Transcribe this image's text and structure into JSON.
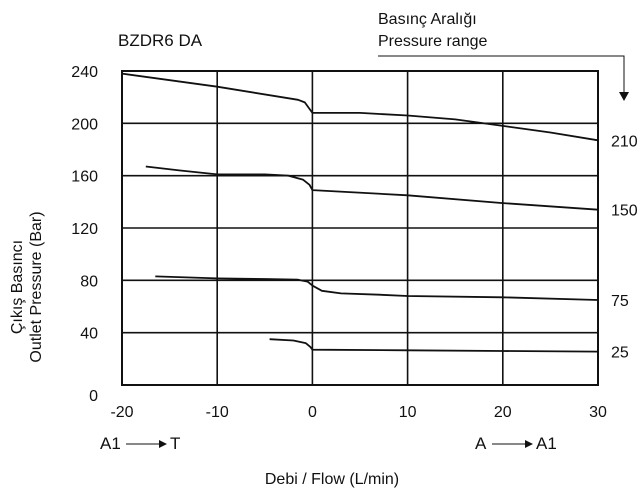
{
  "chart_data": {
    "type": "line",
    "title": "BZDR6 DA",
    "pressure_range_label": [
      "Basınç Aralığı",
      "Pressure range"
    ],
    "xlabel": "Debi / Flow (L/min)",
    "ylabel": [
      "Çıkış Basıncı",
      "Outlet Pressure (Bar)"
    ],
    "xlim": [
      -20,
      30
    ],
    "ylim": [
      0,
      240
    ],
    "x_ticks": [
      "-20",
      "-10",
      "0",
      "10",
      "20",
      "30"
    ],
    "y_ticks": [
      "0",
      "40",
      "80",
      "120",
      "160",
      "200",
      "240"
    ],
    "direction_left": [
      "A1",
      "T"
    ],
    "direction_right": [
      "A",
      "A1"
    ],
    "grid": true,
    "line_color": "#111111",
    "series": [
      {
        "name": "210",
        "points": [
          [
            -20,
            238
          ],
          [
            -10,
            228
          ],
          [
            -1.5,
            218
          ],
          [
            -0.8,
            216
          ],
          [
            -0.3,
            211
          ],
          [
            0,
            208
          ],
          [
            5,
            208
          ],
          [
            10,
            206
          ],
          [
            15,
            203
          ],
          [
            20,
            198
          ],
          [
            25,
            193
          ],
          [
            30,
            187
          ]
        ]
      },
      {
        "name": "150",
        "points": [
          [
            -17.5,
            167
          ],
          [
            -14,
            164
          ],
          [
            -10,
            161
          ],
          [
            -5,
            161
          ],
          [
            -2.5,
            160
          ],
          [
            -1,
            157
          ],
          [
            -0.3,
            153
          ],
          [
            0,
            149
          ],
          [
            10,
            145
          ],
          [
            20,
            139
          ],
          [
            30,
            134
          ]
        ]
      },
      {
        "name": "75",
        "points": [
          [
            -16.5,
            83
          ],
          [
            -10,
            81.5
          ],
          [
            -5,
            81
          ],
          [
            -1.5,
            80.5
          ],
          [
            -0.5,
            79
          ],
          [
            0,
            76
          ],
          [
            1,
            72
          ],
          [
            3,
            70
          ],
          [
            7,
            69
          ],
          [
            10,
            68
          ],
          [
            20,
            67
          ],
          [
            30,
            65
          ]
        ]
      },
      {
        "name": "25",
        "points": [
          [
            -4.5,
            35
          ],
          [
            -2,
            34
          ],
          [
            -0.7,
            32
          ],
          [
            -0.2,
            29
          ],
          [
            0,
            27
          ],
          [
            10,
            26.5
          ],
          [
            20,
            26
          ],
          [
            30,
            25.5
          ]
        ]
      }
    ]
  }
}
